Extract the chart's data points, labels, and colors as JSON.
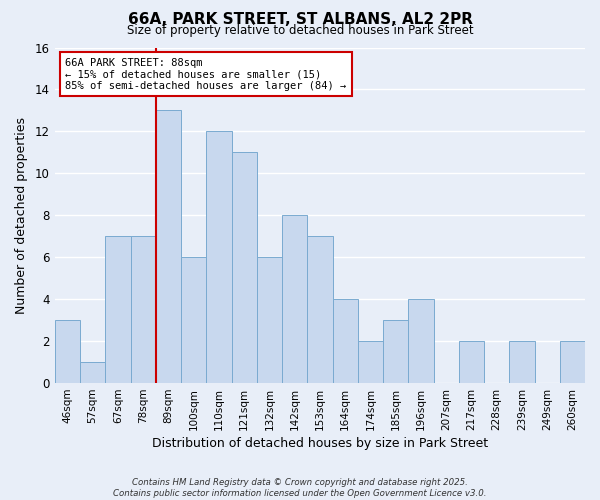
{
  "title": "66A, PARK STREET, ST ALBANS, AL2 2PR",
  "subtitle": "Size of property relative to detached houses in Park Street",
  "xlabel": "Distribution of detached houses by size in Park Street",
  "ylabel": "Number of detached properties",
  "background_color": "#e8eef8",
  "bar_color": "#c8d8ee",
  "bar_edge_color": "#7aaad0",
  "grid_color": "#ffffff",
  "categories": [
    "46sqm",
    "57sqm",
    "67sqm",
    "78sqm",
    "89sqm",
    "100sqm",
    "110sqm",
    "121sqm",
    "132sqm",
    "142sqm",
    "153sqm",
    "164sqm",
    "174sqm",
    "185sqm",
    "196sqm",
    "207sqm",
    "217sqm",
    "228sqm",
    "239sqm",
    "249sqm",
    "260sqm"
  ],
  "values": [
    3,
    1,
    7,
    7,
    13,
    6,
    12,
    11,
    6,
    8,
    7,
    4,
    2,
    3,
    4,
    0,
    2,
    0,
    2,
    0,
    2
  ],
  "ylim": [
    0,
    16
  ],
  "yticks": [
    0,
    2,
    4,
    6,
    8,
    10,
    12,
    14,
    16
  ],
  "property_line_x": 3.5,
  "annotation_text": "66A PARK STREET: 88sqm\n← 15% of detached houses are smaller (15)\n85% of semi-detached houses are larger (84) →",
  "annotation_box_color": "#ffffff",
  "annotation_box_edge_color": "#cc0000",
  "property_line_color": "#cc0000",
  "footer_line1": "Contains HM Land Registry data © Crown copyright and database right 2025.",
  "footer_line2": "Contains public sector information licensed under the Open Government Licence v3.0."
}
